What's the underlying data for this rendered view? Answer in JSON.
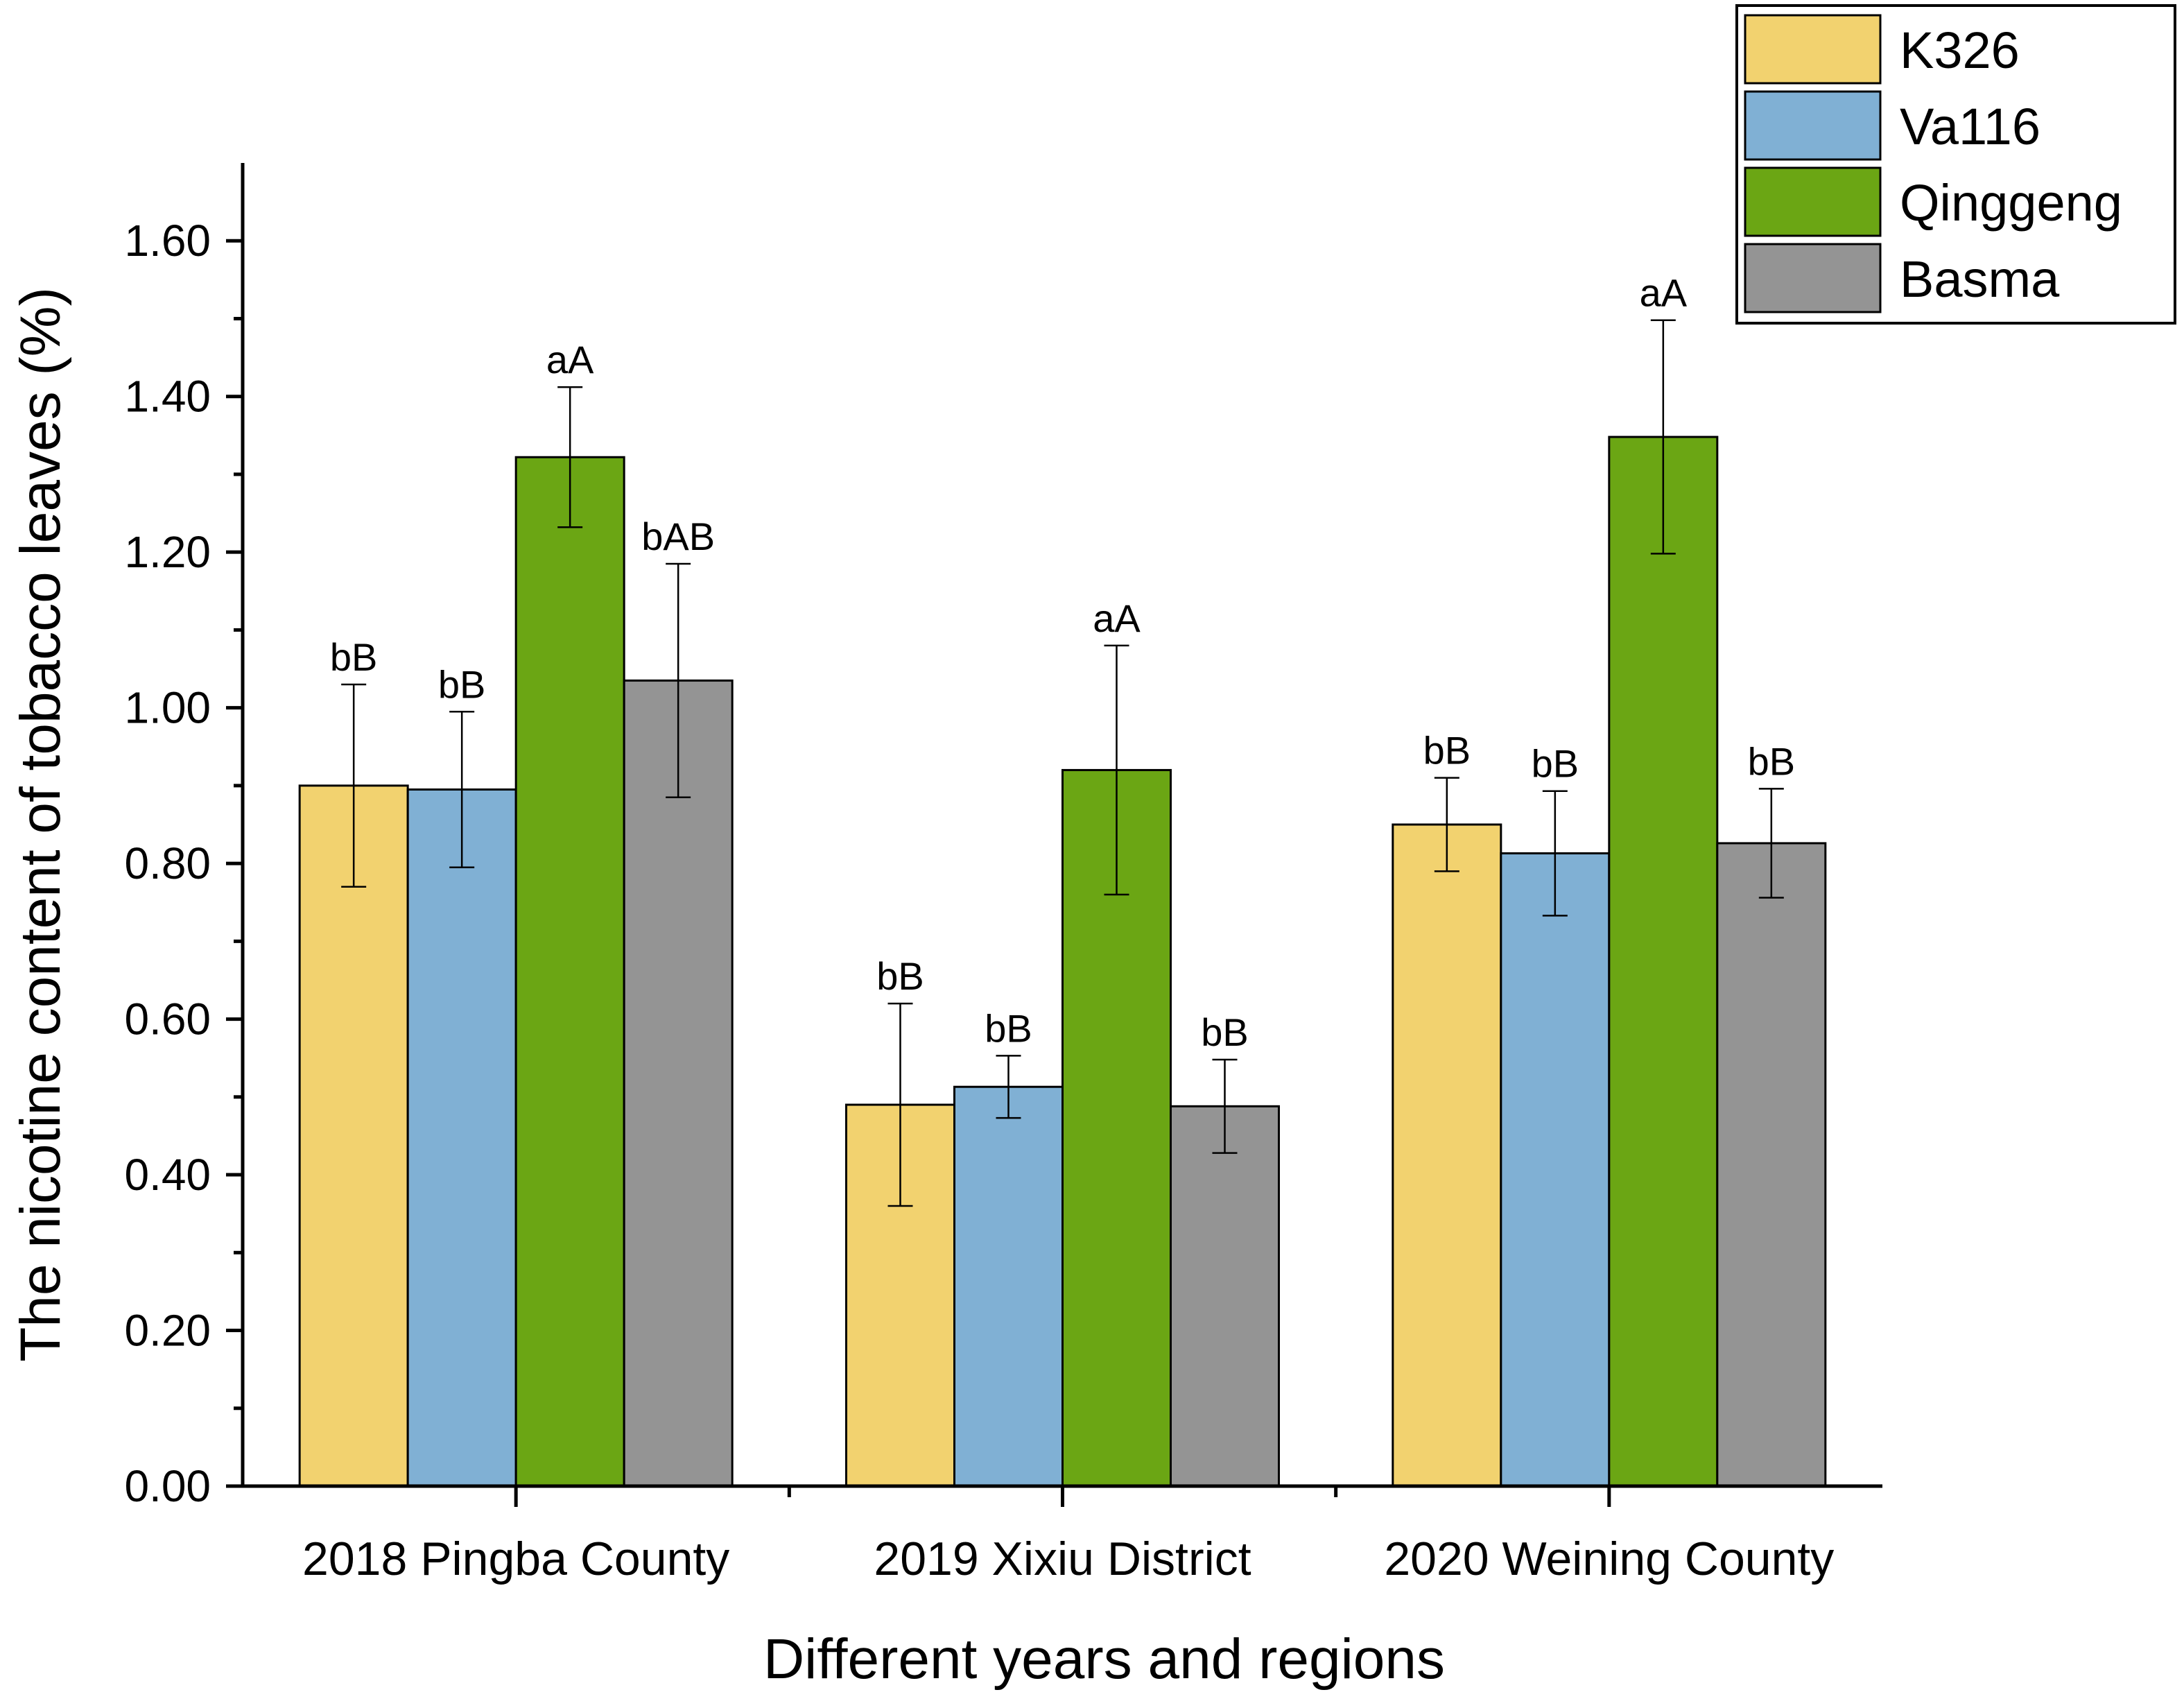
{
  "chart_data": {
    "type": "bar",
    "title": "",
    "xlabel": "Different years and regions",
    "ylabel": "The nicotine content of tobacco leaves (%)",
    "ylim": [
      0,
      1.7
    ],
    "yticks": [
      "0.00",
      "0.20",
      "0.40",
      "0.60",
      "0.80",
      "1.00",
      "1.20",
      "1.40",
      "1.60"
    ],
    "categories": [
      "2018 Pingba County",
      "2019 Xixiu District",
      "2020 Weining County"
    ],
    "series": [
      {
        "name": "K326",
        "color": "#F2D26F",
        "values": [
          0.9,
          0.49,
          0.85
        ],
        "errors": [
          0.13,
          0.13,
          0.06
        ],
        "labels": [
          "bB",
          "bB",
          "bB"
        ]
      },
      {
        "name": "Va116",
        "color": "#80B0D4",
        "values": [
          0.895,
          0.513,
          0.813
        ],
        "errors": [
          0.1,
          0.04,
          0.08
        ],
        "labels": [
          "bB",
          "bB",
          "bB"
        ]
      },
      {
        "name": "Qinggeng",
        "color": "#6BA614",
        "values": [
          1.322,
          0.92,
          1.348
        ],
        "errors": [
          0.09,
          0.16,
          0.15
        ],
        "labels": [
          "aA",
          "aA",
          "aA"
        ]
      },
      {
        "name": "Basma",
        "color": "#949494",
        "values": [
          1.035,
          0.488,
          0.826
        ],
        "errors": [
          0.15,
          0.06,
          0.07
        ],
        "labels": [
          "bAB",
          "bB",
          "bB"
        ]
      }
    ],
    "legend": "top-right",
    "grid": false
  }
}
